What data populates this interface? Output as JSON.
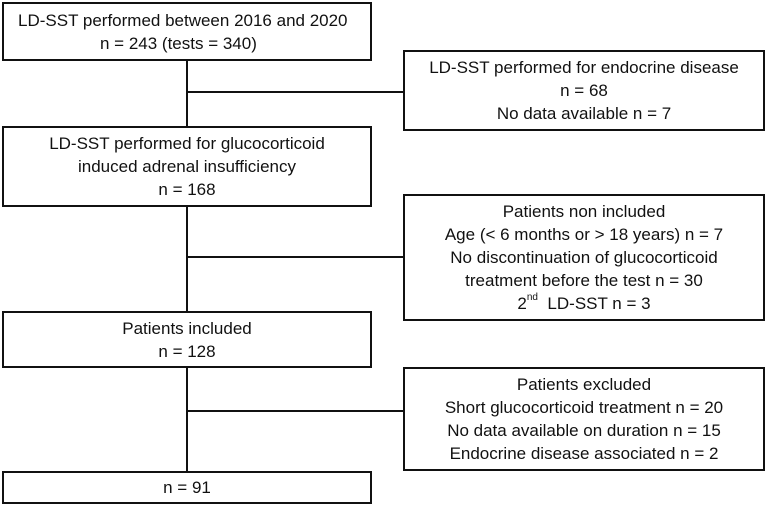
{
  "boxes": {
    "start": {
      "line1": "LD-SST performed between 2016 and 2020",
      "line2": "n = 243 (tests = 340)"
    },
    "endocrine": {
      "line1": "LD-SST performed for endocrine disease",
      "line2": "n = 68",
      "line3": "No data available n = 7"
    },
    "gc_induced": {
      "line1": "LD-SST performed for glucocorticoid",
      "line2": "induced adrenal insufficiency",
      "line3": "n = 168"
    },
    "non_included": {
      "line1": "Patients non included",
      "line2": "Age (< 6 months or > 18 years) n = 7",
      "line3": "No discontinuation of glucocorticoid",
      "line4": "treatment before the test n = 30",
      "line5_number": "2",
      "line5_sup": "nd",
      "line5_rest": "  LD-SST n = 3"
    },
    "included": {
      "line1": "Patients included",
      "line2": "n = 128"
    },
    "excluded": {
      "line1": "Patients excluded",
      "line2": "Short glucocorticoid treatment n = 20",
      "line3": "No data available on duration n = 15",
      "line4": "Endocrine disease associated n = 2"
    },
    "final": {
      "line1": "n = 91"
    }
  }
}
